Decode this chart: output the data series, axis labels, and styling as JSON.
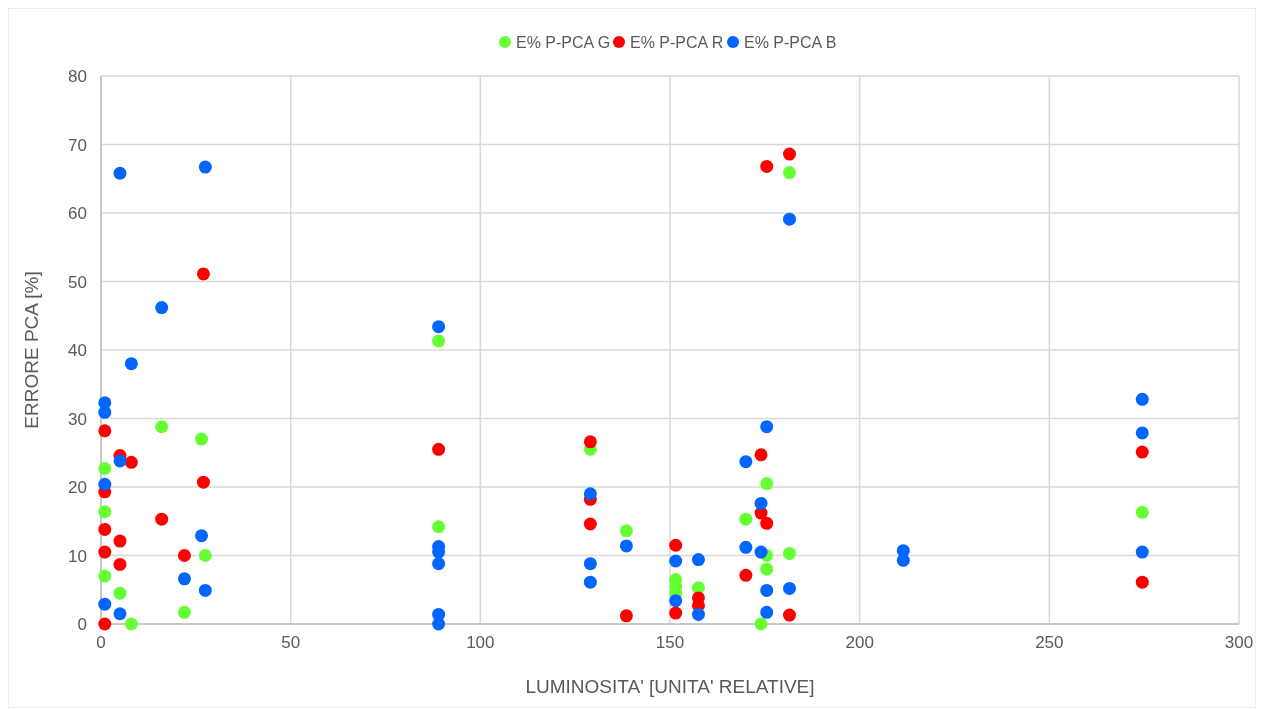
{
  "chart_data": {
    "type": "scatter",
    "xlabel": "LUMINOSITA' [UNITA' RELATIVE]",
    "ylabel": "ERRORE PCA [%]",
    "xlim": [
      0,
      300
    ],
    "xticks": [
      0,
      50,
      100,
      150,
      200,
      250,
      300
    ],
    "ylim": [
      0,
      80
    ],
    "yticks": [
      0,
      10,
      20,
      30,
      40,
      50,
      60,
      70,
      80
    ],
    "grid": true,
    "legend": "top",
    "marker": "circle",
    "series": [
      {
        "name": "E% P-PCA G",
        "color": "#66ff33",
        "x": [
          1,
          1,
          1,
          5,
          8,
          16,
          22,
          26.5,
          27.5,
          89,
          89,
          129,
          138.5,
          151.5,
          151.5,
          151.5,
          157.5,
          170,
          174,
          175.5,
          175.5,
          175.5,
          181.5,
          181.5,
          274.5
        ],
        "values": [
          22.7,
          16.4,
          7.0,
          4.5,
          0,
          28.8,
          1.7,
          27.0,
          10.0,
          41.3,
          14.2,
          25.5,
          13.6,
          6.5,
          5.5,
          4.5,
          5.3,
          15.3,
          0,
          20.5,
          10.0,
          8.0,
          65.9,
          10.3,
          16.3
        ]
      },
      {
        "name": "E% P-PCA R",
        "color": "#ff0000",
        "x": [
          1,
          1,
          1,
          1,
          1,
          5,
          5,
          5,
          8,
          16,
          22,
          27,
          27,
          89,
          129,
          129,
          129,
          138.5,
          151.5,
          151.5,
          157.5,
          157.5,
          170,
          174,
          174,
          175.5,
          175.5,
          181.5,
          181.5,
          274.5,
          274.5
        ],
        "values": [
          28.2,
          19.3,
          13.8,
          10.5,
          0,
          24.6,
          12.1,
          8.7,
          23.6,
          15.3,
          10.0,
          20.7,
          51.1,
          25.5,
          26.6,
          18.2,
          14.6,
          1.2,
          11.5,
          1.6,
          3.8,
          2.7,
          7.1,
          24.7,
          16.2,
          66.8,
          14.7,
          68.6,
          1.3,
          25.1,
          6.1
        ]
      },
      {
        "name": "E% P-PCA B",
        "color": "#0066ff",
        "x": [
          1,
          1,
          1,
          1,
          5,
          5,
          5,
          8,
          16,
          22,
          26.5,
          27.5,
          27.5,
          89,
          89,
          89,
          89,
          89,
          89,
          129,
          129,
          129,
          138.5,
          151.5,
          151.5,
          157.5,
          157.5,
          170,
          170,
          174,
          174,
          175.5,
          175.5,
          175.5,
          181.5,
          181.5,
          211.5,
          211.5,
          274.5,
          274.5,
          274.5
        ],
        "values": [
          32.3,
          30.9,
          20.4,
          2.9,
          65.8,
          23.8,
          1.5,
          38.0,
          46.2,
          6.6,
          12.9,
          66.7,
          4.9,
          43.4,
          11.3,
          10.5,
          8.8,
          1.4,
          0,
          19.0,
          8.8,
          6.1,
          11.4,
          9.2,
          3.4,
          9.4,
          1.4,
          23.7,
          11.2,
          17.6,
          10.5,
          28.8,
          4.9,
          1.7,
          59.1,
          5.2,
          10.7,
          9.3,
          32.8,
          27.9,
          10.5
        ]
      }
    ]
  }
}
